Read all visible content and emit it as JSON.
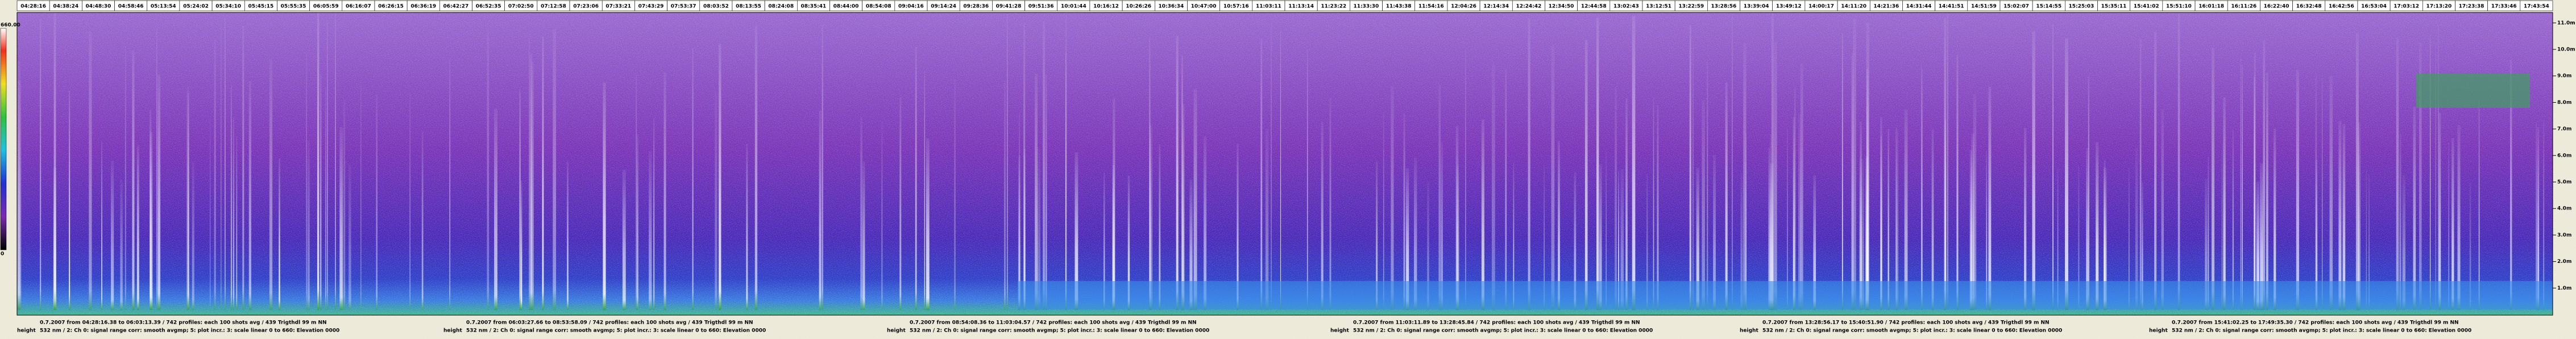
{
  "time_labels": [
    "04:28:16",
    "04:38:24",
    "04:48:30",
    "04:58:46",
    "05:13:54",
    "05:24:02",
    "05:34:10",
    "05:45:15",
    "05:55:35",
    "06:05:59",
    "06:16:07",
    "06:26:15",
    "06:36:19",
    "06:42:27",
    "06:52:35",
    "07:02:50",
    "07:12:58",
    "07:23:06",
    "07:33:21",
    "07:43:29",
    "07:53:37",
    "08:03:52",
    "08:13:55",
    "08:24:08",
    "08:35:41",
    "08:44:00",
    "08:54:08",
    "09:04:16",
    "09:14:24",
    "09:28:36",
    "09:41:28",
    "09:51:36",
    "10:01:44",
    "10:16:12",
    "10:26:26",
    "10:36:34",
    "10:47:00",
    "10:57:16",
    "11:03:11",
    "11:13:14",
    "11:23:22",
    "11:33:30",
    "11:43:38",
    "11:54:16",
    "12:04:26",
    "12:14:34",
    "12:24:42",
    "12:34:50",
    "12:44:58",
    "13:02:43",
    "13:12:51",
    "13:22:59",
    "13:28:56",
    "13:39:04",
    "13:49:12",
    "14:00:17",
    "14:11:20",
    "14:21:36",
    "14:31:44",
    "14:41:51",
    "14:51:59",
    "15:02:07",
    "15:14:55",
    "15:25:03",
    "15:35:11",
    "15:41:02",
    "15:51:10",
    "16:01:18",
    "16:11:26",
    "16:22:40",
    "16:32:48",
    "16:42:56",
    "16:53:04",
    "17:03:12",
    "17:13:20",
    "17:23:38",
    "17:33:46",
    "17:43:54"
  ],
  "height_labels": [
    "1.0m",
    "2.0m",
    "3.0m",
    "4.0m",
    "5.0m",
    "6.0m",
    "7.0m",
    "8.0m",
    "9.0m",
    "10.0m",
    "11.0m"
  ],
  "colorbar": {
    "max": "660.00",
    "min": "0"
  },
  "height_caption": "height",
  "captions": [
    {
      "line1": "0.7.2007 from 04:28:16.38 to 06:03:13.39 / 742 profiles: each 100 shots avg / 439 Trigthdl 99 m NN",
      "line2": "532 nm / 2: Ch 0: signal range corr: smooth avgmp; 5: plot incr.: 3: scale linear 0 to 660: Elevation 0000"
    },
    {
      "line1": "0.7.2007 from 06:03:27.66 to 08:53:58.09 / 742 profiles: each 100 shots avg / 439 Trigthdl 99 m NN",
      "line2": "532 nm / 2: Ch 0: signal range corr: smooth avgmp; 5: plot incr.: 3: scale linear 0 to 660: Elevation 0000"
    },
    {
      "line1": "0.7.2007 from 08:54:08.36 to 11:03:04.57 / 742 profiles: each 100 shots avg / 439 Trigthdl 99 m NN",
      "line2": "532 nm / 2: Ch 0: signal range corr: smooth avgmp; 5: plot incr.: 3: scale linear 0 to 660: Elevation 0000"
    },
    {
      "line1": "0.7.2007 from 11:03:11.89 to 13:28:45.84 / 742 profiles: each 100 shots avg / 439 Trigthdl 99 m NN",
      "line2": "532 nm / 2: Ch 0: signal range corr: smooth avgmp; 5: plot incr.: 3: scale linear 0 to 660: Elevation 0000"
    },
    {
      "line1": "0.7.2007 from 13:28:56.17 to 15:40:51.90 / 742 profiles: each 100 shots avg / 439 Trigthdl 99 m NN",
      "line2": "532 nm / 2: Ch 0: signal range corr: smooth avgmp; 5: plot incr.: 3: scale linear 0 to 660: Elevation 0000"
    },
    {
      "line1": "0.7.2007 from 15:41:02.25 to 17:49:35.30 / 742 profiles: each 100 shots avg / 439 Trigthdl 99 m NN",
      "line2": "532 nm / 2: Ch 0: signal range corr: smooth avgmp; 5: plot incr.: 3: scale linear 0 to 660: Elevation 0000"
    }
  ]
}
